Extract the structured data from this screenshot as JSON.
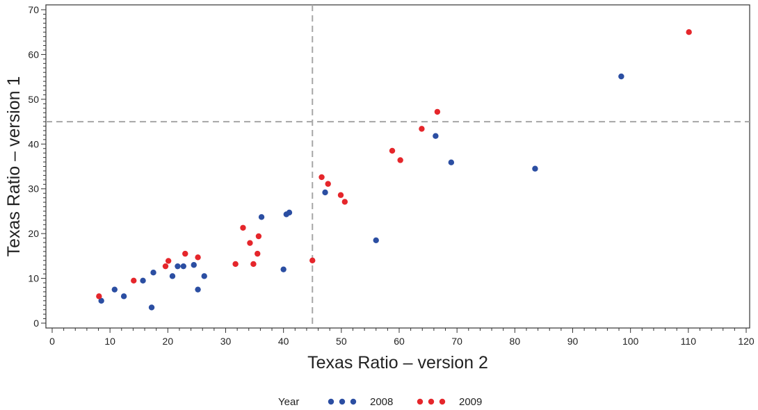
{
  "chart_data": {
    "type": "scatter",
    "xlabel": "Texas Ratio – version 2",
    "ylabel": "Texas Ratio – version 1",
    "xlim": [
      0,
      120
    ],
    "ylim": [
      0,
      70
    ],
    "x_major_ticks": [
      0,
      10,
      20,
      30,
      40,
      50,
      60,
      70,
      80,
      90,
      100,
      110,
      120
    ],
    "y_major_ticks": [
      0,
      10,
      20,
      30,
      40,
      50,
      60,
      70
    ],
    "reference_lines": {
      "x": 45,
      "y": 45,
      "style": "dashed",
      "color": "#a6a6a6"
    },
    "grid": false,
    "legend": {
      "title": "Year",
      "placement": "bottom",
      "entries": [
        "2008",
        "2009"
      ]
    },
    "series": [
      {
        "name": "2008",
        "color": "#2b4ea2",
        "points": [
          [
            8.5,
            5.0
          ],
          [
            10.8,
            7.5
          ],
          [
            12.4,
            6.0
          ],
          [
            15.7,
            9.5
          ],
          [
            17.2,
            3.5
          ],
          [
            17.5,
            11.3
          ],
          [
            20.8,
            10.5
          ],
          [
            21.7,
            12.7
          ],
          [
            22.7,
            12.7
          ],
          [
            24.5,
            13.0
          ],
          [
            25.2,
            7.5
          ],
          [
            26.3,
            10.5
          ],
          [
            36.2,
            23.7
          ],
          [
            40.0,
            12.0
          ],
          [
            40.5,
            24.3
          ],
          [
            41.0,
            24.7
          ],
          [
            47.2,
            29.2
          ],
          [
            56.0,
            18.5
          ],
          [
            66.3,
            41.8
          ],
          [
            69.0,
            35.9
          ],
          [
            83.5,
            34.5
          ],
          [
            98.4,
            55.1
          ]
        ]
      },
      {
        "name": "2009",
        "color": "#e5262b",
        "points": [
          [
            8.1,
            6.0
          ],
          [
            14.1,
            9.5
          ],
          [
            19.6,
            12.7
          ],
          [
            20.1,
            13.9
          ],
          [
            23.0,
            15.5
          ],
          [
            25.2,
            14.7
          ],
          [
            31.7,
            13.2
          ],
          [
            33.0,
            21.3
          ],
          [
            34.2,
            17.9
          ],
          [
            34.8,
            13.2
          ],
          [
            35.5,
            15.5
          ],
          [
            35.7,
            19.4
          ],
          [
            45.0,
            14.0
          ],
          [
            46.6,
            32.6
          ],
          [
            47.7,
            31.1
          ],
          [
            49.9,
            28.6
          ],
          [
            50.6,
            27.1
          ],
          [
            58.8,
            38.5
          ],
          [
            60.2,
            36.4
          ],
          [
            63.9,
            43.4
          ],
          [
            66.6,
            47.2
          ],
          [
            110.1,
            65.0
          ]
        ]
      }
    ]
  }
}
